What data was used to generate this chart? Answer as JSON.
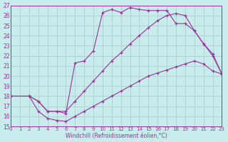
{
  "xlabel": "Windchill (Refroidissement éolien,°C)",
  "bg_color": "#c8ecec",
  "grid_color": "#aac8c8",
  "line_color": "#993399",
  "xlim": [
    0,
    23
  ],
  "ylim": [
    15,
    27
  ],
  "xticks": [
    0,
    1,
    2,
    3,
    4,
    5,
    6,
    7,
    8,
    9,
    10,
    11,
    12,
    13,
    14,
    15,
    16,
    17,
    18,
    19,
    20,
    21,
    22,
    23
  ],
  "yticks": [
    15,
    16,
    17,
    18,
    19,
    20,
    21,
    22,
    23,
    24,
    25,
    26,
    27
  ],
  "line1_x": [
    0,
    2,
    3,
    4,
    5,
    6,
    7,
    8,
    9,
    10,
    11,
    12,
    13,
    14,
    15,
    16,
    17,
    18,
    19,
    20,
    21,
    22,
    23
  ],
  "line1_y": [
    18.0,
    18.0,
    16.5,
    15.8,
    15.6,
    15.5,
    16.0,
    16.5,
    17.0,
    17.5,
    18.0,
    18.5,
    19.0,
    19.5,
    20.0,
    20.3,
    20.6,
    20.9,
    21.2,
    21.5,
    21.2,
    20.5,
    20.2
  ],
  "line2_x": [
    0,
    2,
    3,
    4,
    5,
    6,
    7,
    8,
    9,
    10,
    11,
    12,
    13,
    14,
    15,
    16,
    17,
    18,
    19,
    20,
    21,
    22,
    23
  ],
  "line2_y": [
    18.0,
    18.0,
    17.5,
    16.5,
    16.5,
    16.3,
    21.3,
    21.5,
    22.5,
    26.3,
    26.6,
    26.3,
    26.8,
    26.6,
    26.5,
    26.5,
    26.5,
    25.2,
    25.2,
    24.5,
    23.2,
    22.2,
    20.2
  ],
  "line3_x": [
    0,
    2,
    3,
    4,
    5,
    6,
    7,
    8,
    9,
    10,
    11,
    12,
    13,
    14,
    15,
    16,
    17,
    18,
    19,
    20,
    21,
    22,
    23
  ],
  "line3_y": [
    18.0,
    18.0,
    17.5,
    16.5,
    16.5,
    16.5,
    17.5,
    18.5,
    19.5,
    20.5,
    21.5,
    22.3,
    23.2,
    24.0,
    24.8,
    25.5,
    26.0,
    26.2,
    26.0,
    24.5,
    23.2,
    22.0,
    20.2
  ]
}
